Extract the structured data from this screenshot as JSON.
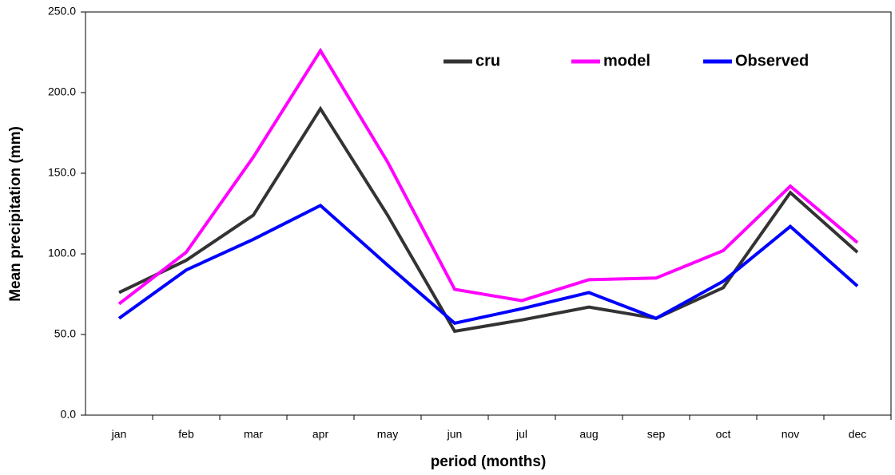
{
  "chart_data": {
    "type": "line",
    "x_label": "period (months)",
    "y_label": "Mean precipitation (mm)",
    "categories": [
      "jan",
      "feb",
      "mar",
      "apr",
      "may",
      "jun",
      "jul",
      "aug",
      "sep",
      "oct",
      "nov",
      "dec"
    ],
    "series": [
      {
        "name": "cru",
        "color": "#333333",
        "values": [
          76,
          96,
          124,
          190,
          124,
          52,
          59,
          67,
          60,
          79,
          138,
          101
        ]
      },
      {
        "name": "model",
        "color": "#ff00ff",
        "values": [
          69,
          101,
          160,
          226,
          157,
          78,
          71,
          84,
          85,
          102,
          142,
          107
        ]
      },
      {
        "name": "Observed",
        "color": "#0000ff",
        "values": [
          60,
          90,
          109,
          130,
          93,
          57,
          66,
          76,
          60,
          83,
          117,
          80
        ]
      }
    ],
    "ylim": [
      0,
      250
    ],
    "yticks": [
      {
        "value": 0,
        "label": "0.0"
      },
      {
        "value": 50,
        "label": "50.0"
      },
      {
        "value": 100,
        "label": "100.0"
      },
      {
        "value": 150,
        "label": "150.0"
      },
      {
        "value": 200,
        "label": "200.0"
      },
      {
        "value": 250,
        "label": "250.0"
      }
    ],
    "grid": false,
    "legend": "top"
  }
}
